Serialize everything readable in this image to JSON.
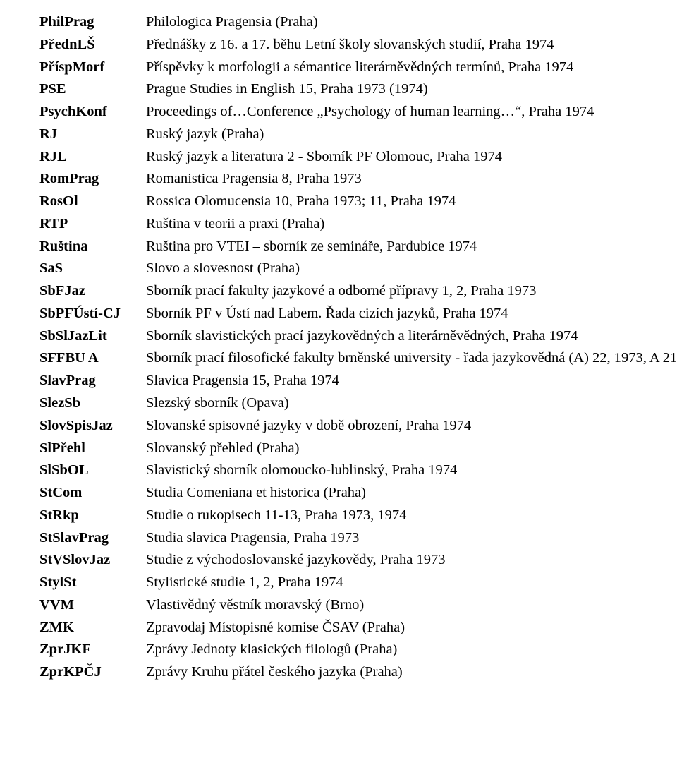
{
  "entries": [
    {
      "abbr": "PhilPrag",
      "desc": "Philologica Pragensia (Praha)"
    },
    {
      "abbr": "PřednLŠ",
      "desc": "Přednášky z 16. a 17. běhu Letní školy slovanských studií, Praha 1974"
    },
    {
      "abbr": "PříspMorf",
      "desc": "Příspěvky k morfologii a sémantice literárněvědných termínů, Praha 1974"
    },
    {
      "abbr": "PSE",
      "desc": "Prague Studies in English 15, Praha 1973 (1974)"
    },
    {
      "abbr": "PsychKonf",
      "desc": "Proceedings of…Conference „Psychology of human learning…“, Praha 1974"
    },
    {
      "abbr": "RJ",
      "desc": "Ruský jazyk (Praha)"
    },
    {
      "abbr": "RJL",
      "desc": "Ruský jazyk a  literatura 2 - Sborník PF  Olomouc, Praha 1974"
    },
    {
      "abbr": "RomPrag",
      "desc": "Romanistica Pragensia 8, Praha 1973"
    },
    {
      "abbr": "RosOl",
      "desc": "Rossica Olomucensia 10, Praha 1973;  11, Praha 1974"
    },
    {
      "abbr": "RTP",
      "desc": "Ruština v teorii a praxi (Praha)"
    },
    {
      "abbr": "Ruština",
      "desc": "Ruština pro VTEI – sborník ze semináře, Pardubice 1974"
    },
    {
      "abbr": "SaS",
      "desc": "Slovo a slovesnost (Praha)"
    },
    {
      "abbr": "SbFJaz",
      "desc": "Sborník prací fakulty jazykové a odborné přípravy 1, 2, Praha 1973"
    },
    {
      "abbr": "SbPFÚstí-CJ",
      "desc": "Sborník PF v Ústí nad Labem. Řada cizích jazyků, Praha 1974"
    },
    {
      "abbr": "SbSlJazLit",
      "desc": "Sborník slavistických prací jazykovědných a literárněvědných, Praha 1974"
    },
    {
      "abbr": "SFFBU A",
      "desc": "Sborník prací filosofické fakulty brněnské university - řada jazykovědná (A) 22, 1973, A 21"
    },
    {
      "abbr": "SlavPrag",
      "desc": "Slavica Pragensia 15, Praha 1974"
    },
    {
      "abbr": "SlezSb",
      "desc": "Slezský sborník (Opava)"
    },
    {
      "abbr": "SlovSpisJaz",
      "desc": "Slovanské spisovné jazyky v době obrození, Praha 1974"
    },
    {
      "abbr": "SlPřehl",
      "desc": "Slovanský přehled (Praha)"
    },
    {
      "abbr": "SlSbOL",
      "desc": "Slavistický sborník olomoucko-lublinský, Praha 1974"
    },
    {
      "abbr": "StCom",
      "desc": "Studia Comeniana et historica (Praha)"
    },
    {
      "abbr": "StRkp",
      "desc": "Studie o rukopisech 11-13, Praha 1973, 1974"
    },
    {
      "abbr": "StSlavPrag",
      "desc": "Studia slavica Pragensia, Praha 1973"
    },
    {
      "abbr": "StVSlovJaz",
      "desc": "Studie z východoslovanské jazykovědy, Praha 1973"
    },
    {
      "abbr": "StylSt",
      "desc": "Stylistické studie 1, 2, Praha 1974"
    },
    {
      "abbr": "VVM",
      "desc": "Vlastivědný věstník moravský (Brno)"
    },
    {
      "abbr": "ZMK",
      "desc": "Zpravodaj Místopisné komise ČSAV (Praha)"
    },
    {
      "abbr": "ZprJKF",
      "desc": "Zprávy Jednoty klasických filologů (Praha)"
    },
    {
      "abbr": "ZprKPČJ",
      "desc": "Zprávy Kruhu přátel českého jazyka (Praha)"
    }
  ]
}
